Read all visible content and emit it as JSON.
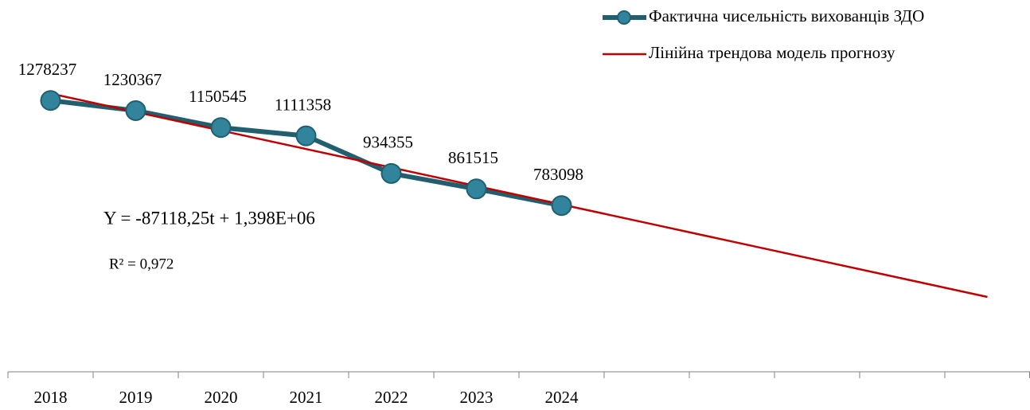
{
  "chart_data": {
    "type": "line",
    "categories": [
      "2018",
      "2019",
      "2020",
      "2021",
      "2022",
      "2023",
      "2024",
      null,
      null,
      null,
      null,
      null
    ],
    "series": [
      {
        "name": "Фактична чисельність вихованців ЗДО",
        "color": "#31849b",
        "line_color": "#215f6e",
        "marker": true,
        "values": [
          1278237,
          1230367,
          1150545,
          1111358,
          934355,
          861515,
          783098,
          null,
          null,
          null,
          null,
          null
        ],
        "data_labels": true
      },
      {
        "name": "Лінійна трендова модель прогнозу",
        "color": "#c00000",
        "marker": false,
        "values": [
          1310900,
          1223800,
          1136600,
          1049500,
          962400,
          875300,
          788200,
          701100,
          613900,
          526800,
          439700,
          352600
        ],
        "data_labels": false
      }
    ],
    "ylim": [
      0,
      1600000
    ],
    "annotations": [
      "Y = -87118,25t + 1,398E+06",
      "R² = 0,972"
    ],
    "legend": "top-right",
    "grid": false
  }
}
